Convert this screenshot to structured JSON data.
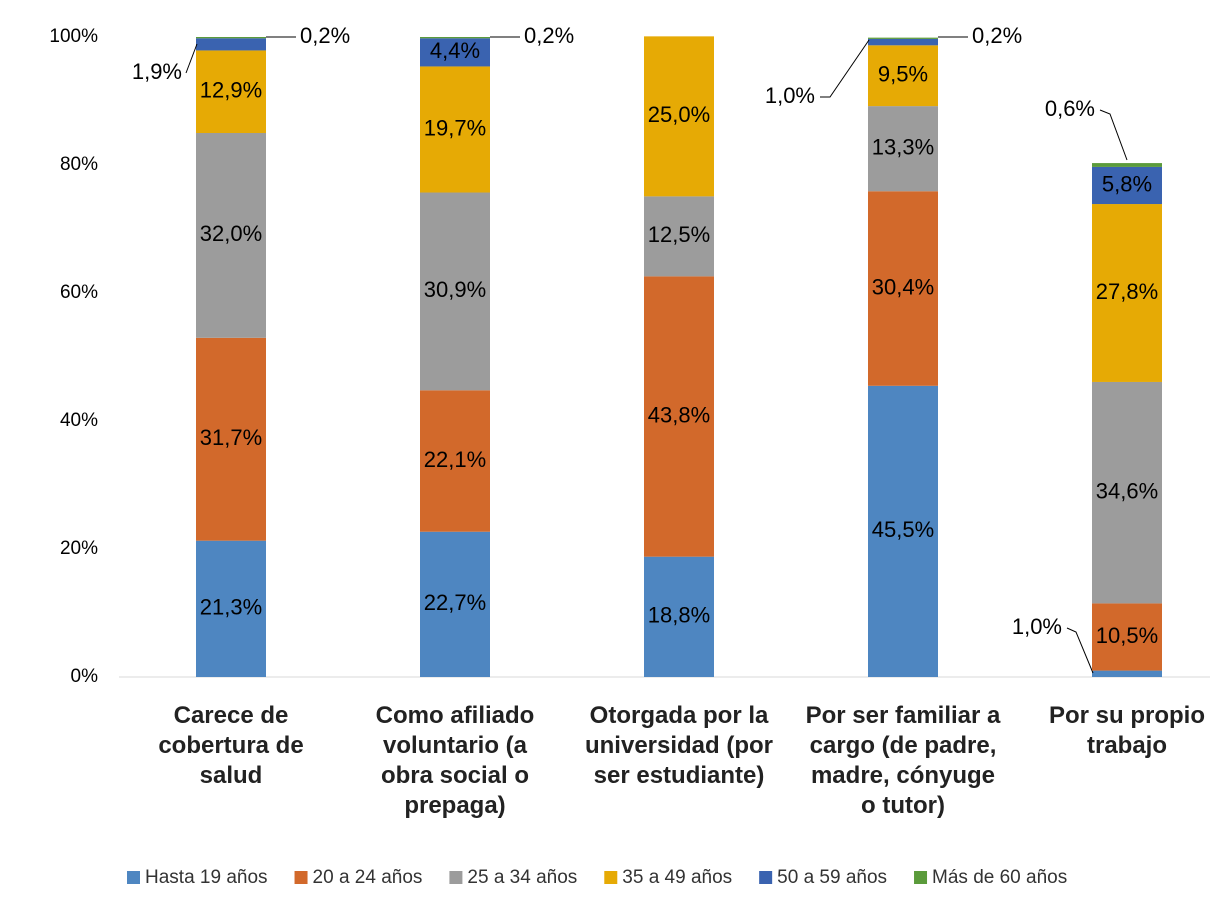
{
  "chart_data": {
    "type": "stacked_bar",
    "categories": [
      "Carece de cobertura de salud",
      "Como afiliado voluntario (a obra social o prepaga)",
      "Otorgada por la universidad (por ser estudiante)",
      "Por ser familiar a cargo (de padre, madre, cónyuge o tutor)",
      "Por su propio trabajo"
    ],
    "series": [
      {
        "name": "Hasta 19 años",
        "color": "#4e86c1",
        "values": [
          21.3,
          22.7,
          18.8,
          45.5,
          1.0
        ],
        "value_labels": [
          "21,3%",
          "22,7%",
          "18,8%",
          "45,5%",
          "1,0%"
        ]
      },
      {
        "name": "20 a 24 años",
        "color": "#d2692b",
        "values": [
          31.7,
          22.1,
          43.8,
          30.4,
          10.5
        ],
        "value_labels": [
          "31,7%",
          "22,1%",
          "43,8%",
          "30,4%",
          "10,5%"
        ]
      },
      {
        "name": "25 a 34 años",
        "color": "#9c9c9c",
        "values": [
          32.0,
          30.9,
          12.5,
          13.3,
          34.6
        ],
        "value_labels": [
          "32,0%",
          "30,9%",
          "12,5%",
          "13,3%",
          "34,6%"
        ]
      },
      {
        "name": "35 a 49 años",
        "color": "#e6aa05",
        "values": [
          12.9,
          19.7,
          25.0,
          9.5,
          27.8
        ],
        "value_labels": [
          "12,9%",
          "19,7%",
          "25,0%",
          "9,5%",
          "27,8%"
        ]
      },
      {
        "name": "50 a 59 años",
        "color": "#3a63b0",
        "values": [
          1.9,
          4.4,
          null,
          1.0,
          5.8
        ],
        "value_labels": [
          "1,9%",
          "4,4%",
          null,
          "1,0%",
          "5,8%"
        ]
      },
      {
        "name": "Más de 60 años",
        "color": "#5b9b3b",
        "values": [
          0.2,
          0.2,
          null,
          0.2,
          0.6
        ],
        "value_labels": [
          "0,2%",
          "0,2%",
          null,
          "0,2%",
          "0,6%"
        ]
      }
    ],
    "ylim": [
      0,
      100
    ],
    "yticks": [
      {
        "value": 0,
        "label": "0%"
      },
      {
        "value": 20,
        "label": "20%"
      },
      {
        "value": 40,
        "label": "40%"
      },
      {
        "value": 60,
        "label": "60%"
      },
      {
        "value": 80,
        "label": "80%"
      },
      {
        "value": 100,
        "label": "100%"
      }
    ],
    "grid": false,
    "legend": "bottom"
  }
}
